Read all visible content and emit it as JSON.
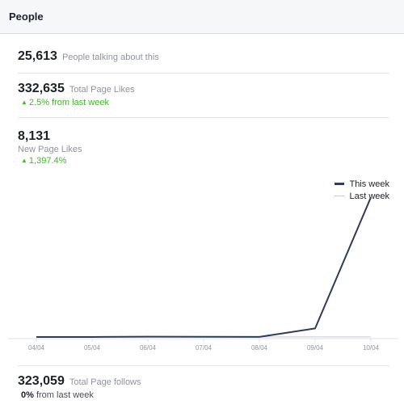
{
  "header": {
    "title": "People"
  },
  "talking": {
    "value": "25,613",
    "label": "People talking about this"
  },
  "page_likes": {
    "value": "332,635",
    "label": "Total Page Likes",
    "change": "2.5%",
    "change_suffix": " from last week"
  },
  "new_likes": {
    "value": "8,131",
    "label": "New Page Likes",
    "change": "1,397.4%"
  },
  "follows": {
    "value": "323,059",
    "label": "Total Page follows",
    "change": "0%",
    "change_suffix": " from last week"
  },
  "colors": {
    "this_week": "#2e3b59",
    "last_week": "#c8cbd1",
    "positive": "#42b72a"
  },
  "chart_data": {
    "type": "line",
    "x": [
      "04/04",
      "05/04",
      "06/04",
      "07/04",
      "08/04",
      "09/04",
      "10/04"
    ],
    "series": [
      {
        "name": "This week",
        "values": [
          2,
          1,
          20,
          14,
          7,
          500,
          8131
        ]
      },
      {
        "name": "Last week",
        "values": [
          3,
          3,
          4,
          4,
          3,
          4,
          5
        ]
      }
    ],
    "ylim": [
      0,
      8800
    ],
    "grid": false,
    "legend": "top-right"
  }
}
